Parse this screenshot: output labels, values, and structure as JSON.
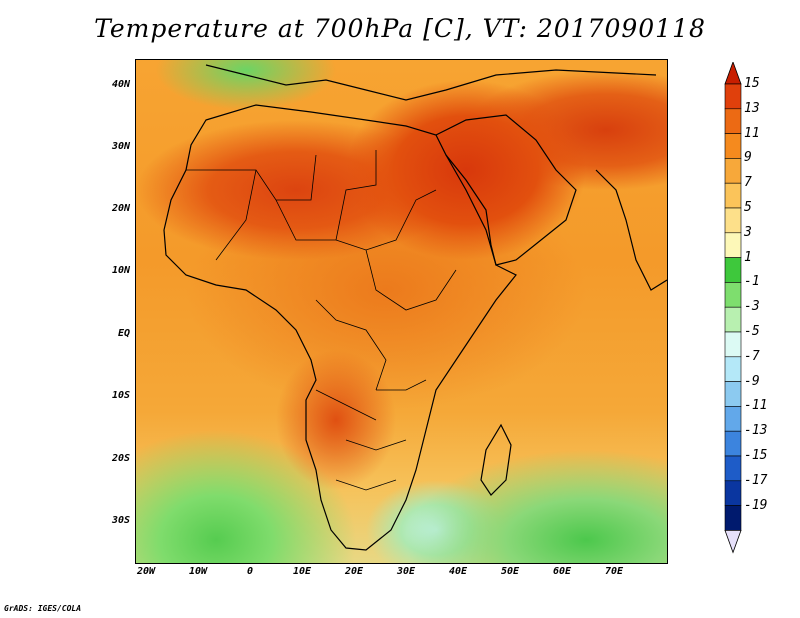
{
  "title": "Temperature at 700hPa [C], VT: 2017090118",
  "credit": "GrADS: IGES/COLA",
  "map": {
    "lat_labels": [
      "40N",
      "30N",
      "20N",
      "10N",
      "EQ",
      "10S",
      "20S",
      "30S"
    ],
    "lon_labels": [
      "20W",
      "10W",
      "0",
      "10E",
      "20E",
      "30E",
      "40E",
      "50E",
      "60E",
      "70E"
    ],
    "lon_range": [
      -22,
      80
    ],
    "lat_range": [
      -36,
      45
    ]
  },
  "colorbar": {
    "labels": [
      "15",
      "13",
      "11",
      "9",
      "7",
      "5",
      "3",
      "1",
      "-1",
      "-3",
      "-5",
      "-7",
      "-9",
      "-11",
      "-13",
      "-15",
      "-17",
      "-19"
    ],
    "colors": [
      "#c81e00",
      "#e0400c",
      "#ec6a14",
      "#f58a1e",
      "#f7a83a",
      "#fbc45a",
      "#fde08a",
      "#fdf8b8",
      "#3ec83c",
      "#7ede6e",
      "#b8f0b0",
      "#dcfaf4",
      "#b4e8f8",
      "#8ccaf0",
      "#62a8ea",
      "#3c84de",
      "#1e5cc8",
      "#0a36a0",
      "#001a6e",
      "#e6e0fa"
    ]
  }
}
